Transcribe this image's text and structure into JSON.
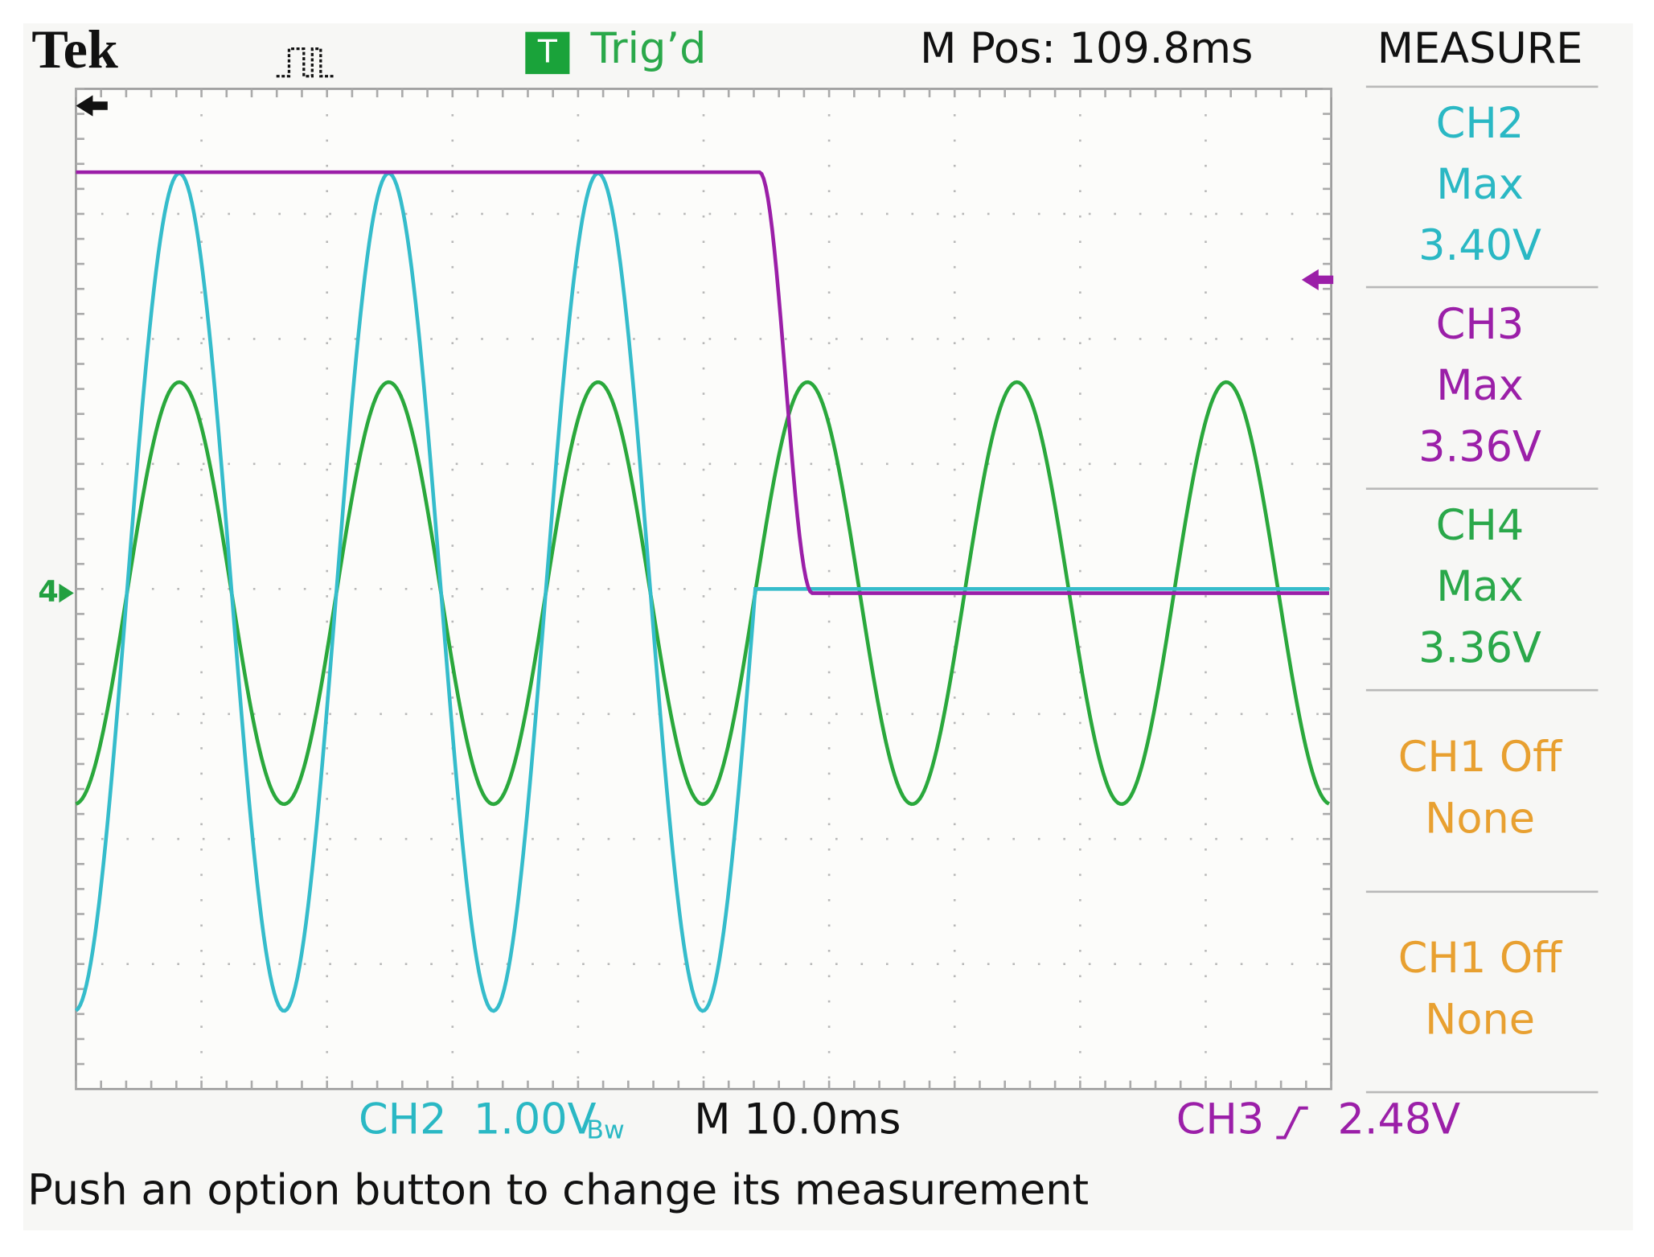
{
  "header": {
    "brand": "Tek",
    "trigger_badge": "T",
    "trigger_status": "Trig’d",
    "position": "M Pos: 109.8ms"
  },
  "measure_panel": {
    "title": "MEASURE",
    "items": [
      {
        "channel": "CH2",
        "type": "Max",
        "value": "3.40V"
      },
      {
        "channel": "CH3",
        "type": "Max",
        "value": "3.36V"
      },
      {
        "channel": "CH4",
        "type": "Max",
        "value": "3.36V"
      },
      {
        "channel": "CH1 Off",
        "type": "None"
      },
      {
        "channel": "CH1 Off",
        "type": "None"
      }
    ]
  },
  "footer": {
    "ch2_scale": "CH2  1.00V",
    "ch2_suffix": "Bw",
    "timebase": "M 10.0ms",
    "trigger_source": "CH3",
    "trigger_level": "2.48V",
    "message": "Push an option button to change its measurement"
  }
}
